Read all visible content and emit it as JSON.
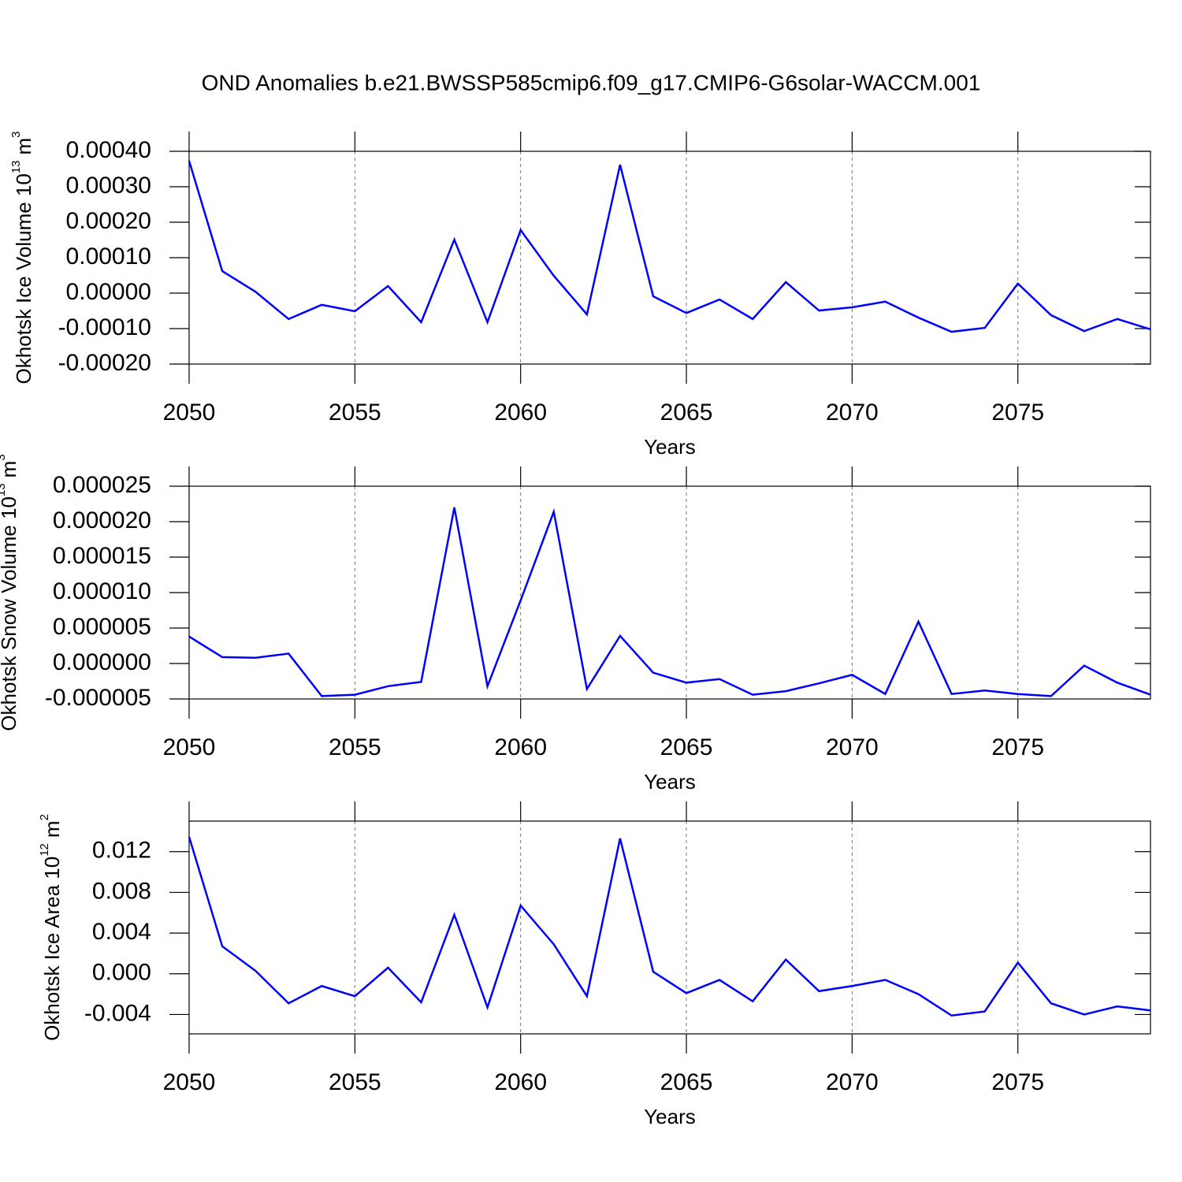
{
  "title": "OND Anomalies b.e21.BWSSP585cmip6.f09_g17.CMIP6-G6solar-WACCM.001",
  "chart_data": [
    {
      "type": "line",
      "xlabel": "Years",
      "ylabel": {
        "text": "Okhotsk Ice Volume 10",
        "exp": "13",
        "unit": "m",
        "unit_exp": "3"
      },
      "x": [
        2050,
        2051,
        2052,
        2053,
        2054,
        2055,
        2056,
        2057,
        2058,
        2059,
        2060,
        2061,
        2062,
        2063,
        2064,
        2065,
        2066,
        2067,
        2068,
        2069,
        2070,
        2071,
        2072,
        2073,
        2074,
        2075,
        2076,
        2077,
        2078,
        2079
      ],
      "series": [
        {
          "color": "#0000ff",
          "values": [
            0.000373,
            6.2e-05,
            4e-06,
            -7.3e-05,
            -3.3e-05,
            -5.1e-05,
            2e-05,
            -8.2e-05,
            0.000151,
            -8.2e-05,
            0.000178,
            4.9e-05,
            -6e-05,
            0.000362,
            -9e-06,
            -5.6e-05,
            -1.8e-05,
            -7.3e-05,
            3.1e-05,
            -4.9e-05,
            -4e-05,
            -2.4e-05,
            -6.9e-05,
            -0.000109,
            -9.8e-05,
            2.7e-05,
            -6.2e-05,
            -0.000107,
            -7.3e-05,
            -0.000102
          ]
        }
      ],
      "xlim": [
        2050,
        2079
      ],
      "xticks": [
        2050,
        2055,
        2060,
        2065,
        2070,
        2075
      ],
      "ylim": [
        -0.0002,
        0.0004
      ],
      "yticks": [
        {
          "value": 0.0004,
          "label": "0.00040"
        },
        {
          "value": 0.0003,
          "label": "0.00030"
        },
        {
          "value": 0.0002,
          "label": "0.00020"
        },
        {
          "value": 0.0001,
          "label": "0.00010"
        },
        {
          "value": 0,
          "label": "0.00000"
        },
        {
          "value": -0.0001,
          "label": "-0.00010"
        },
        {
          "value": -0.0002,
          "label": "-0.00020"
        }
      ],
      "xgrid": true
    },
    {
      "type": "line",
      "xlabel": "Years",
      "ylabel": {
        "text": "Okhotsk Snow Volume 10",
        "exp": "13",
        "unit": "m",
        "unit_exp": "3"
      },
      "x": [
        2050,
        2051,
        2052,
        2053,
        2054,
        2055,
        2056,
        2057,
        2058,
        2059,
        2060,
        2061,
        2062,
        2063,
        2064,
        2065,
        2066,
        2067,
        2068,
        2069,
        2070,
        2071,
        2072,
        2073,
        2074,
        2075,
        2076,
        2077,
        2078,
        2079
      ],
      "series": [
        {
          "color": "#0000ff",
          "values": [
            3.8e-06,
            9e-07,
            8e-07,
            1.4e-06,
            -4.6e-06,
            -4.4e-06,
            -3.2e-06,
            -2.6e-06,
            2.2e-05,
            -3.2e-06,
            8.9e-06,
            2.14e-05,
            -3.6e-06,
            3.9e-06,
            -1.3e-06,
            -2.7e-06,
            -2.2e-06,
            -4.4e-06,
            -3.9e-06,
            -2.8e-06,
            -1.6e-06,
            -4.3e-06,
            5.9e-06,
            -4.3e-06,
            -3.8e-06,
            -4.3e-06,
            -4.6e-06,
            -3e-07,
            -2.7e-06,
            -4.4e-06
          ]
        }
      ],
      "xlim": [
        2050,
        2079
      ],
      "xticks": [
        2050,
        2055,
        2060,
        2065,
        2070,
        2075
      ],
      "ylim": [
        -5e-06,
        2.5e-05
      ],
      "yticks": [
        {
          "value": 2.5e-05,
          "label": "0.000025"
        },
        {
          "value": 2e-05,
          "label": "0.000020"
        },
        {
          "value": 1.5e-05,
          "label": "0.000015"
        },
        {
          "value": 1e-05,
          "label": "0.000010"
        },
        {
          "value": 5e-06,
          "label": "0.000005"
        },
        {
          "value": 0,
          "label": "0.000000"
        },
        {
          "value": -5e-06,
          "label": "-0.000005"
        }
      ],
      "xgrid": true
    },
    {
      "type": "line",
      "xlabel": "Years",
      "ylabel": {
        "text": "Okhotsk Ice Area 10",
        "exp": "12",
        "unit": "m",
        "unit_exp": "2"
      },
      "x": [
        2050,
        2051,
        2052,
        2053,
        2054,
        2055,
        2056,
        2057,
        2058,
        2059,
        2060,
        2061,
        2062,
        2063,
        2064,
        2065,
        2066,
        2067,
        2068,
        2069,
        2070,
        2071,
        2072,
        2073,
        2074,
        2075,
        2076,
        2077,
        2078,
        2079
      ],
      "series": [
        {
          "color": "#0000ff",
          "values": [
            0.01345,
            0.0027,
            0.0003,
            -0.0029,
            -0.0012,
            -0.0022,
            0.0006,
            -0.0028,
            0.0058,
            -0.0033,
            0.0067,
            0.0029,
            -0.0022,
            0.0133,
            0.0002,
            -0.0019,
            -0.0006,
            -0.0027,
            0.0014,
            -0.0017,
            -0.0012,
            -0.0006,
            -0.002,
            -0.0041,
            -0.0037,
            0.0011,
            -0.0029,
            -0.004,
            -0.0032,
            -0.0036
          ]
        }
      ],
      "xlim": [
        2050,
        2079
      ],
      "xticks": [
        2050,
        2055,
        2060,
        2065,
        2070,
        2075
      ],
      "ylim": [
        -0.0059,
        0.015
      ],
      "yticks": [
        {
          "value": 0.012,
          "label": "0.012"
        },
        {
          "value": 0.008,
          "label": "0.008"
        },
        {
          "value": 0.004,
          "label": "0.004"
        },
        {
          "value": 0,
          "label": "0.000"
        },
        {
          "value": -0.004,
          "label": "-0.004"
        }
      ],
      "xgrid": true
    }
  ]
}
